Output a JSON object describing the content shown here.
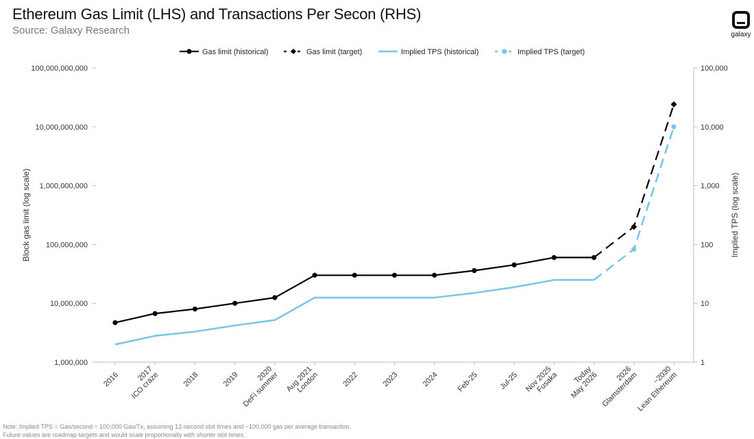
{
  "header": {
    "title": "Ethereum Gas Limit (LHS) and Transactions Per Secon (RHS)",
    "subtitle": "Source: Galaxy Research"
  },
  "logo": {
    "text": "galaxy",
    "icon": "galaxy-logo-icon"
  },
  "notes": {
    "line1": "Note: Implied TPS = Gas/second ÷ 100,000 Gas/Tx, assuming 12-second slot times and ~100,000 gas per average transaction.",
    "line2": "Future values are roadmap targets and would scale proportionally with shorter slot times."
  },
  "chart_data": {
    "type": "line",
    "title": "Ethereum Gas Limit (LHS) and Transactions Per Secon (RHS)",
    "subtitle": "Source: Galaxy Research",
    "categories": [
      [
        "2016"
      ],
      [
        "2017",
        "ICO craze"
      ],
      [
        "2018"
      ],
      [
        "2019"
      ],
      [
        "2020",
        "DeFi summer"
      ],
      [
        "Aug 2021",
        "London"
      ],
      [
        "2022"
      ],
      [
        "2023"
      ],
      [
        "2024"
      ],
      [
        "Feb-25"
      ],
      [
        "Jul-25"
      ],
      [
        "Nov 2025",
        "Fusaka"
      ],
      [
        "Today",
        "May 2026"
      ],
      [
        "2026",
        "Glamsterdam"
      ],
      [
        "~2030",
        "Lean Ethereum"
      ]
    ],
    "y_left": {
      "label": "Block gas limit (log scale)",
      "scale": "log",
      "range": [
        1000000,
        100000000000
      ],
      "ticks": [
        "1,000,000",
        "10,000,000",
        "100,000,000",
        "1,000,000,000",
        "10,000,000,000",
        "100,000,000,000"
      ]
    },
    "y_right": {
      "label": "Implied TPS (log scale)",
      "scale": "log",
      "range": [
        1,
        100000
      ],
      "ticks": [
        "1",
        "10",
        "100",
        "1,000",
        "10,000",
        "100,000"
      ]
    },
    "legend_position": "top",
    "grid": false,
    "series": [
      {
        "name": "Gas limit (historical)",
        "axis": "left",
        "color": "#000000",
        "style": "solid",
        "marker": "circle",
        "values": [
          4700000,
          6700000,
          8000000,
          10000000,
          12500000,
          30000000,
          30000000,
          30000000,
          30000000,
          36000000,
          45000000,
          60000000,
          60000000,
          null,
          null
        ]
      },
      {
        "name": "Gas limit (target)",
        "axis": "left",
        "color": "#000000",
        "style": "dashed",
        "marker": "diamond",
        "values": [
          null,
          null,
          null,
          null,
          null,
          null,
          null,
          null,
          null,
          null,
          null,
          null,
          60000000,
          200000000,
          24000000000
        ]
      },
      {
        "name": "Implied TPS (historical)",
        "axis": "right",
        "color": "#7dc4ea",
        "style": "solid",
        "marker": "none",
        "values": [
          2,
          2.8,
          3.3,
          4.2,
          5.2,
          12.5,
          12.5,
          12.5,
          12.5,
          15,
          18.8,
          25,
          25,
          null,
          null
        ]
      },
      {
        "name": "Implied TPS (target)",
        "axis": "right",
        "color": "#7dc4ea",
        "style": "dashed",
        "marker": "circle",
        "values": [
          null,
          null,
          null,
          null,
          null,
          null,
          null,
          null,
          null,
          null,
          null,
          null,
          25,
          83,
          10000
        ]
      }
    ]
  }
}
